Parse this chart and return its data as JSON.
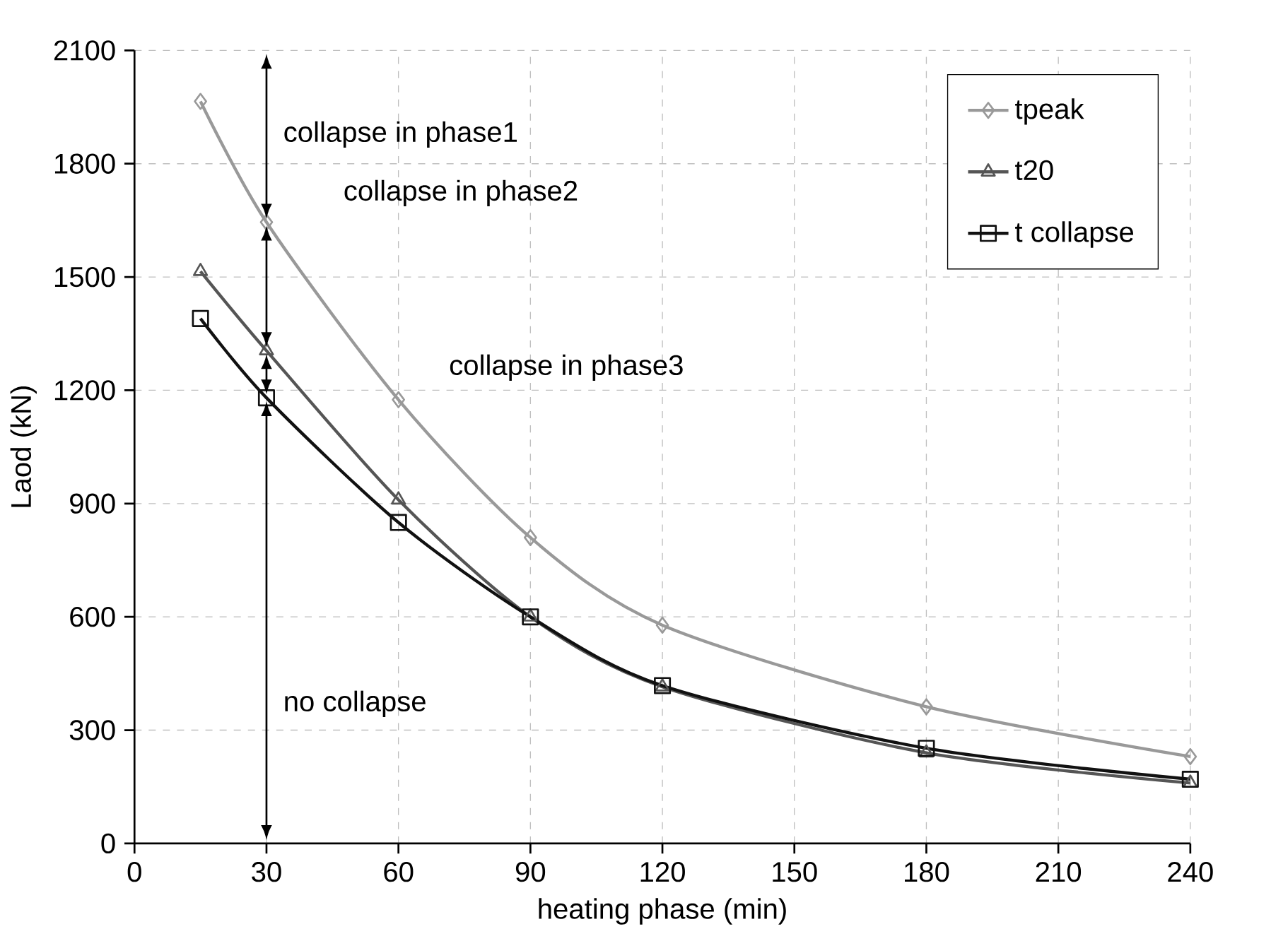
{
  "chart_data": {
    "type": "line",
    "xlabel": "heating phase (min)",
    "ylabel": "Laod (kN)",
    "x": [
      15,
      30,
      60,
      90,
      120,
      180,
      240
    ],
    "series": [
      {
        "name": "tpeak",
        "color": "#999999",
        "marker": "diamond",
        "values": [
          1965,
          1645,
          1175,
          810,
          578,
          362,
          230
        ]
      },
      {
        "name": "t20",
        "color": "#555555",
        "marker": "triangle",
        "values": [
          1515,
          1305,
          910,
          600,
          415,
          240,
          160
        ]
      },
      {
        "name": "t collapse",
        "color": "#111111",
        "marker": "square",
        "values": [
          1390,
          1180,
          850,
          600,
          418,
          252,
          170
        ]
      }
    ],
    "xlim": [
      0,
      240
    ],
    "ylim": [
      0,
      2100
    ],
    "xticks": [
      0,
      30,
      60,
      90,
      120,
      150,
      180,
      210,
      240
    ],
    "yticks": [
      0,
      300,
      600,
      900,
      1200,
      1500,
      1800,
      2100
    ],
    "grid": true,
    "legend": "top right",
    "line_style": "solid",
    "annotations": [
      "collapse in phase1",
      "collapse in phase2",
      "collapse in phase3",
      "no collapse"
    ]
  }
}
